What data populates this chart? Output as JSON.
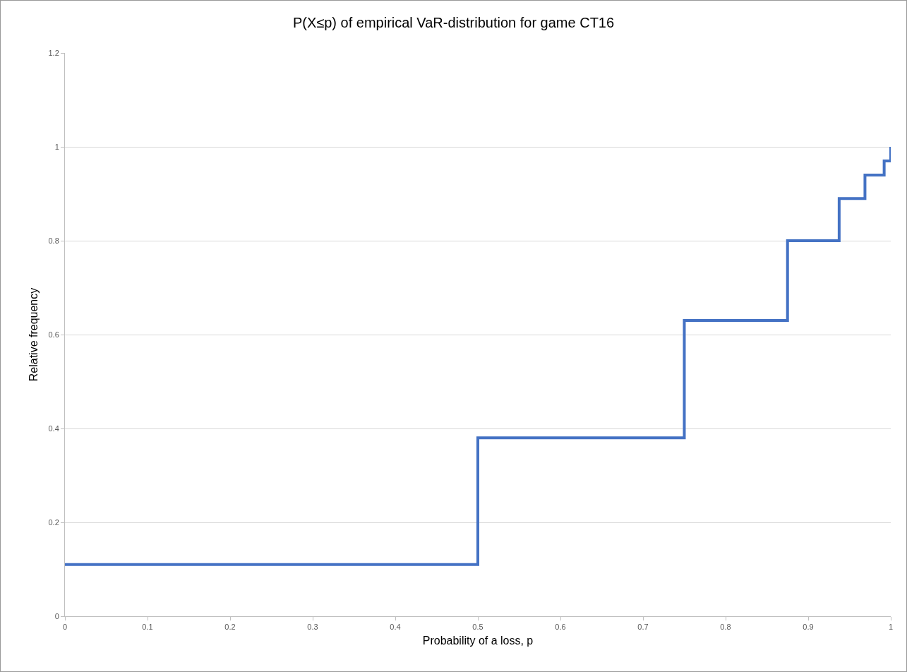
{
  "chart_data": {
    "type": "step",
    "title": "P(X≤p) of empirical VaR-distribution for game CT16",
    "xlabel": "Probability of a loss, p",
    "ylabel": "Relative frequency",
    "x": [
      0,
      0.5,
      0.75,
      0.875,
      0.9375,
      0.96875,
      0.992,
      1
    ],
    "series": [
      {
        "color": "#4472c4",
        "values": [
          0.11,
          0.38,
          0.63,
          0.8,
          0.89,
          0.94,
          0.97,
          1
        ]
      }
    ],
    "xlim": [
      0,
      1
    ],
    "xticks": [
      0,
      0.1,
      0.2,
      0.3,
      0.4,
      0.5,
      0.6,
      0.7,
      0.8,
      0.9,
      1
    ],
    "ylim": [
      0,
      1.2
    ],
    "yticks": [
      0,
      0.2,
      0.4,
      0.6,
      0.8,
      1,
      1.2
    ],
    "grid": "y",
    "legend": false,
    "marker": "none",
    "line_style": "solid"
  }
}
